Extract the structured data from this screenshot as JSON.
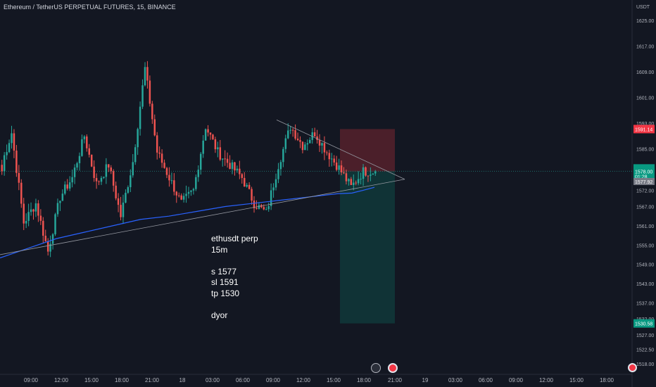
{
  "header": {
    "symbol_title": "Ethereum / TetherUS PERPETUAL FUTURES, 15, BINANCE",
    "currency": "USDT"
  },
  "note_lines": [
    "ethusdt perp",
    "15m",
    "",
    "s 1577",
    "sl 1591",
    "tp 1530",
    "",
    "dyor"
  ],
  "colors": {
    "background": "#131722",
    "up": "#26a69a",
    "down": "#ef5350",
    "ma_line": "#2962ff",
    "trendline": "#9598a1",
    "stop_zone": "rgba(242,54,69,0.25)",
    "target_zone": "rgba(8,153,129,0.22)",
    "stop_label": "#f23645",
    "target_label": "#089981",
    "last_price_label": "#089981",
    "entry_label": "#787b86"
  },
  "icons": [
    "flash-icon",
    "flag-icon",
    "flag-icon"
  ],
  "chart_data": {
    "type": "candlestick",
    "symbol": "Ethereum / TetherUS PERPETUAL FUTURES",
    "interval": "15",
    "exchange": "BINANCE",
    "x_ticks": [
      "09:00",
      "12:00",
      "15:00",
      "18:00",
      "21:00",
      "18",
      "03:00",
      "06:00",
      "09:00",
      "12:00",
      "15:00",
      "18:00",
      "21:00",
      "19",
      "03:00",
      "06:00",
      "09:00",
      "12:00",
      "15:00",
      "18:00"
    ],
    "y_ticks": [
      1625,
      1617,
      1609,
      1601,
      1593,
      1585,
      1578,
      1572,
      1567,
      1561,
      1555,
      1549,
      1543,
      1537,
      1532,
      1527,
      1522.5,
      1518
    ],
    "y_tick_labels": [
      "1625.00",
      "1617.00",
      "1609.00",
      "1601.00",
      "1593.00",
      "1585.00",
      "1578.00",
      "1572.00",
      "1567.00",
      "1561.00",
      "1555.00",
      "1549.00",
      "1543.00",
      "1537.00",
      "1532.00",
      "1527.00",
      "1522.50",
      "1518.00"
    ],
    "price_labels": {
      "stop": "1591.14",
      "last": "1578.00",
      "countdown": "01:28",
      "entry": "1577.92",
      "target": "1530.58"
    },
    "position": {
      "side": "short",
      "entry": 1577.92,
      "stop": 1591.14,
      "target": 1530.58
    },
    "segments": [
      [
        1578,
        1590
      ],
      [
        1590,
        1562
      ],
      [
        1562,
        1568
      ],
      [
        1568,
        1553
      ],
      [
        1553,
        1570
      ],
      [
        1570,
        1576
      ],
      [
        1576,
        1589
      ],
      [
        1589,
        1574
      ],
      [
        1574,
        1580
      ],
      [
        1580,
        1564
      ],
      [
        1564,
        1581
      ],
      [
        1581,
        1610
      ],
      [
        1610,
        1584
      ],
      [
        1584,
        1576
      ],
      [
        1576,
        1568
      ],
      [
        1568,
        1572
      ],
      [
        1572,
        1592
      ],
      [
        1592,
        1584
      ],
      [
        1584,
        1580
      ],
      [
        1580,
        1576
      ],
      [
        1576,
        1568
      ],
      [
        1568,
        1565
      ],
      [
        1565,
        1580
      ],
      [
        1580,
        1592
      ],
      [
        1592,
        1586
      ],
      [
        1586,
        1590
      ],
      [
        1590,
        1584
      ],
      [
        1584,
        1579
      ],
      [
        1579,
        1573
      ],
      [
        1573,
        1578
      ],
      [
        1578,
        1577.92
      ]
    ],
    "moving_average": [
      [
        0,
        1551
      ],
      [
        40,
        1554
      ],
      [
        80,
        1557
      ],
      [
        120,
        1559
      ],
      [
        160,
        1561
      ],
      [
        200,
        1563
      ],
      [
        240,
        1564
      ],
      [
        280,
        1565.5
      ],
      [
        320,
        1567
      ],
      [
        360,
        1568
      ],
      [
        400,
        1569
      ],
      [
        440,
        1570
      ],
      [
        480,
        1571
      ],
      [
        500,
        1571.2
      ],
      [
        515,
        1572
      ],
      [
        532,
        1573
      ]
    ],
    "trendlines": [
      {
        "from": [
          0,
          1552
        ],
        "to": [
          575,
          1575.5
        ]
      },
      {
        "from": [
          393,
          1594
        ],
        "to": [
          575,
          1575.5
        ]
      }
    ]
  }
}
